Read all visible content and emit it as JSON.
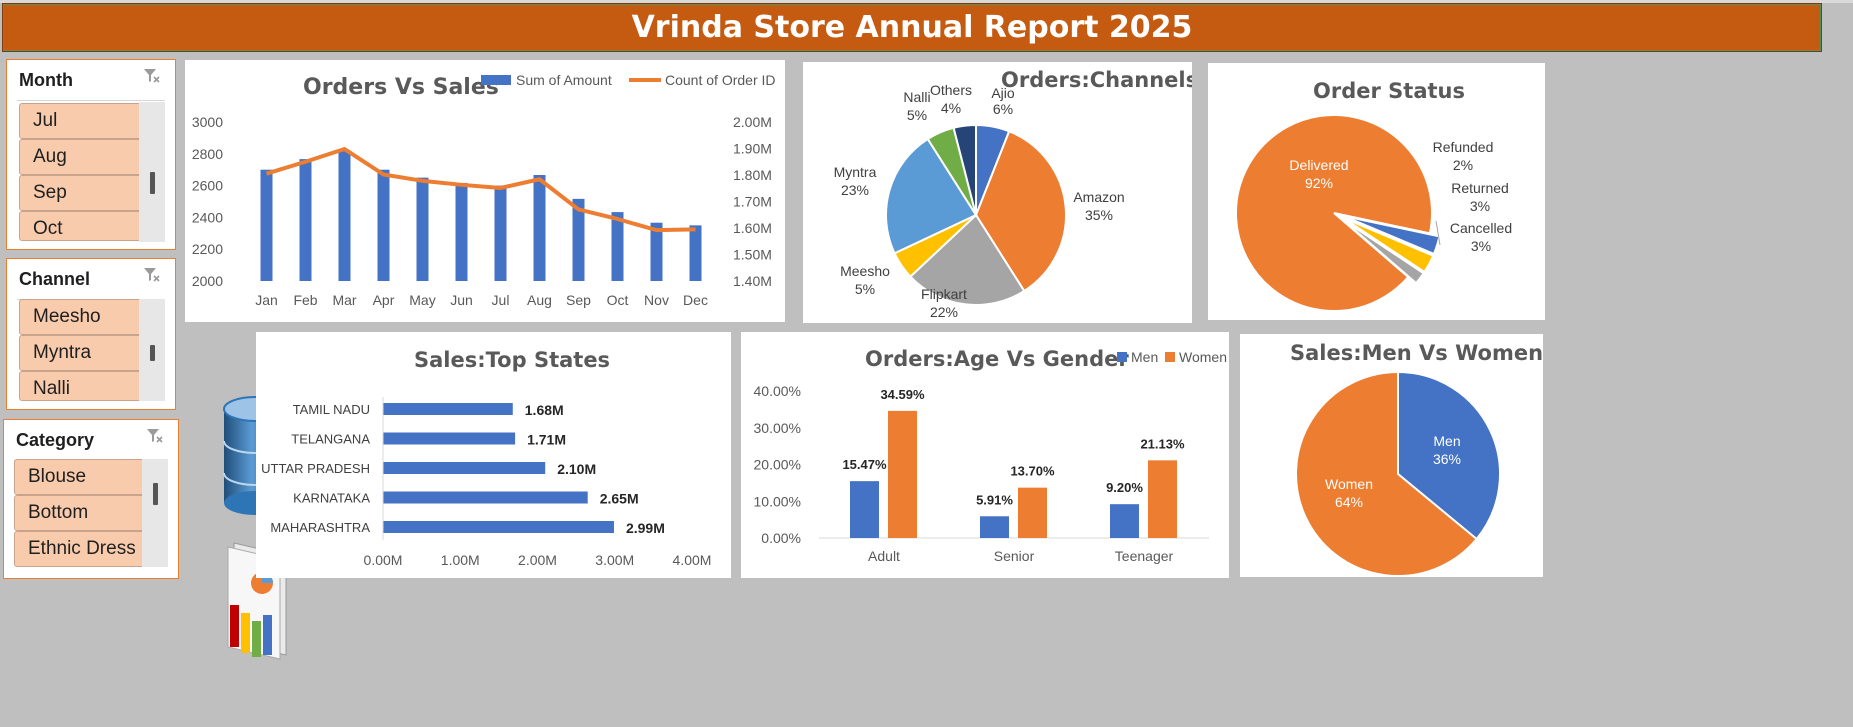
{
  "report_title": "Vrinda Store Annual Report 2025",
  "slicers": [
    {
      "title": "Month",
      "items": [
        "Jul",
        "Aug",
        "Sep",
        "Oct"
      ]
    },
    {
      "title": "Channel",
      "items": [
        "Meesho",
        "Myntra",
        "Nalli"
      ]
    },
    {
      "title": "Category",
      "items": [
        "Blouse",
        "Bottom",
        "Ethnic Dress"
      ]
    }
  ],
  "icons": [
    "filter-clear-icon",
    "database-icon",
    "report-charts-icon"
  ],
  "colors": {
    "banner": "#c55a11",
    "blue": "#4472c4",
    "orange": "#ed7d31",
    "gray": "#a5a5a5",
    "yellow": "#ffc000",
    "lightblue": "#5b9bd5",
    "green": "#70ad47",
    "navy": "#264478"
  },
  "chart_data": [
    {
      "id": "orders_vs_sales",
      "type": "bar",
      "title": "Orders Vs Sales",
      "categories": [
        "Jan",
        "Feb",
        "Mar",
        "Apr",
        "May",
        "Jun",
        "Jul",
        "Aug",
        "Sep",
        "Oct",
        "Nov",
        "Dec"
      ],
      "series": [
        {
          "name": "Sum of Amount",
          "kind": "bar",
          "axis": "right",
          "values": [
            1.82,
            1.86,
            1.89,
            1.82,
            1.79,
            1.77,
            1.76,
            1.8,
            1.71,
            1.66,
            1.62,
            1.61
          ]
        },
        {
          "name": "Count of Order ID",
          "kind": "line",
          "axis": "left",
          "values": [
            2675,
            2750,
            2830,
            2670,
            2630,
            2605,
            2585,
            2640,
            2450,
            2390,
            2320,
            2325
          ]
        }
      ],
      "left_axis": {
        "ylim": [
          2000,
          3000
        ],
        "ticks": [
          "3000",
          "2800",
          "2600",
          "2400",
          "2200",
          "2000"
        ]
      },
      "right_axis": {
        "ylim": [
          1.4,
          2.0
        ],
        "ticks": [
          "2.00M",
          "1.90M",
          "1.80M",
          "1.70M",
          "1.60M",
          "1.50M",
          "1.40M"
        ]
      },
      "legend": "top-right"
    },
    {
      "id": "orders_channels",
      "type": "pie",
      "title": "Orders:Channels",
      "slices": [
        {
          "label": "Ajio",
          "pct": "6%",
          "value": 6,
          "color": "#4472c4"
        },
        {
          "label": "Amazon",
          "pct": "35%",
          "value": 35,
          "color": "#ed7d31"
        },
        {
          "label": "Flipkart",
          "pct": "22%",
          "value": 22,
          "color": "#a5a5a5"
        },
        {
          "label": "Meesho",
          "pct": "5%",
          "value": 5,
          "color": "#ffc000"
        },
        {
          "label": "Myntra",
          "pct": "23%",
          "value": 23,
          "color": "#5b9bd5"
        },
        {
          "label": "Nalli",
          "pct": "5%",
          "value": 5,
          "color": "#70ad47"
        },
        {
          "label": "Others",
          "pct": "4%",
          "value": 4,
          "color": "#264478"
        }
      ]
    },
    {
      "id": "order_status",
      "type": "pie",
      "title": "Order Status",
      "slices": [
        {
          "label": "Delivered",
          "pct": "92%",
          "value": 92,
          "color": "#ed7d31"
        },
        {
          "label": "Refunded",
          "pct": "2%",
          "value": 2,
          "color": "#a5a5a5"
        },
        {
          "label": "Returned",
          "pct": "3%",
          "value": 3,
          "color": "#ffc000"
        },
        {
          "label": "Cancelled",
          "pct": "3%",
          "value": 3,
          "color": "#4472c4"
        }
      ]
    },
    {
      "id": "sales_top_states",
      "type": "bar",
      "orientation": "horizontal",
      "title": "Sales:Top States",
      "categories": [
        "TAMIL NADU",
        "TELANGANA",
        "UTTAR PRADESH",
        "KARNATAKA",
        "MAHARASHTRA"
      ],
      "values": [
        1.68,
        1.71,
        2.1,
        2.65,
        2.99
      ],
      "value_labels": [
        "1.68M",
        "1.71M",
        "2.10M",
        "2.65M",
        "2.99M"
      ],
      "xlim": [
        0,
        4
      ],
      "x_ticks": [
        "0.00M",
        "1.00M",
        "2.00M",
        "3.00M",
        "4.00M"
      ]
    },
    {
      "id": "orders_age_gender",
      "type": "bar",
      "title": "Orders:Age Vs Gender",
      "categories": [
        "Adult",
        "Senior",
        "Teenager"
      ],
      "series": [
        {
          "name": "Men",
          "values": [
            15.47,
            5.91,
            9.2
          ],
          "labels": [
            "15.47%",
            "5.91%",
            "9.20%"
          ],
          "color": "#4472c4"
        },
        {
          "name": "Women",
          "values": [
            34.59,
            13.7,
            21.13
          ],
          "labels": [
            "34.59%",
            "13.70%",
            "21.13%"
          ],
          "color": "#ed7d31"
        }
      ],
      "ylim": [
        0,
        40
      ],
      "y_ticks": [
        "40.00%",
        "30.00%",
        "20.00%",
        "10.00%",
        "0.00%"
      ],
      "legend": "top-right"
    },
    {
      "id": "sales_men_women",
      "type": "pie",
      "title": "Sales:Men Vs Women",
      "slices": [
        {
          "label": "Men",
          "pct": "36%",
          "value": 36,
          "color": "#4472c4"
        },
        {
          "label": "Women",
          "pct": "64%",
          "value": 64,
          "color": "#ed7d31"
        }
      ]
    }
  ]
}
